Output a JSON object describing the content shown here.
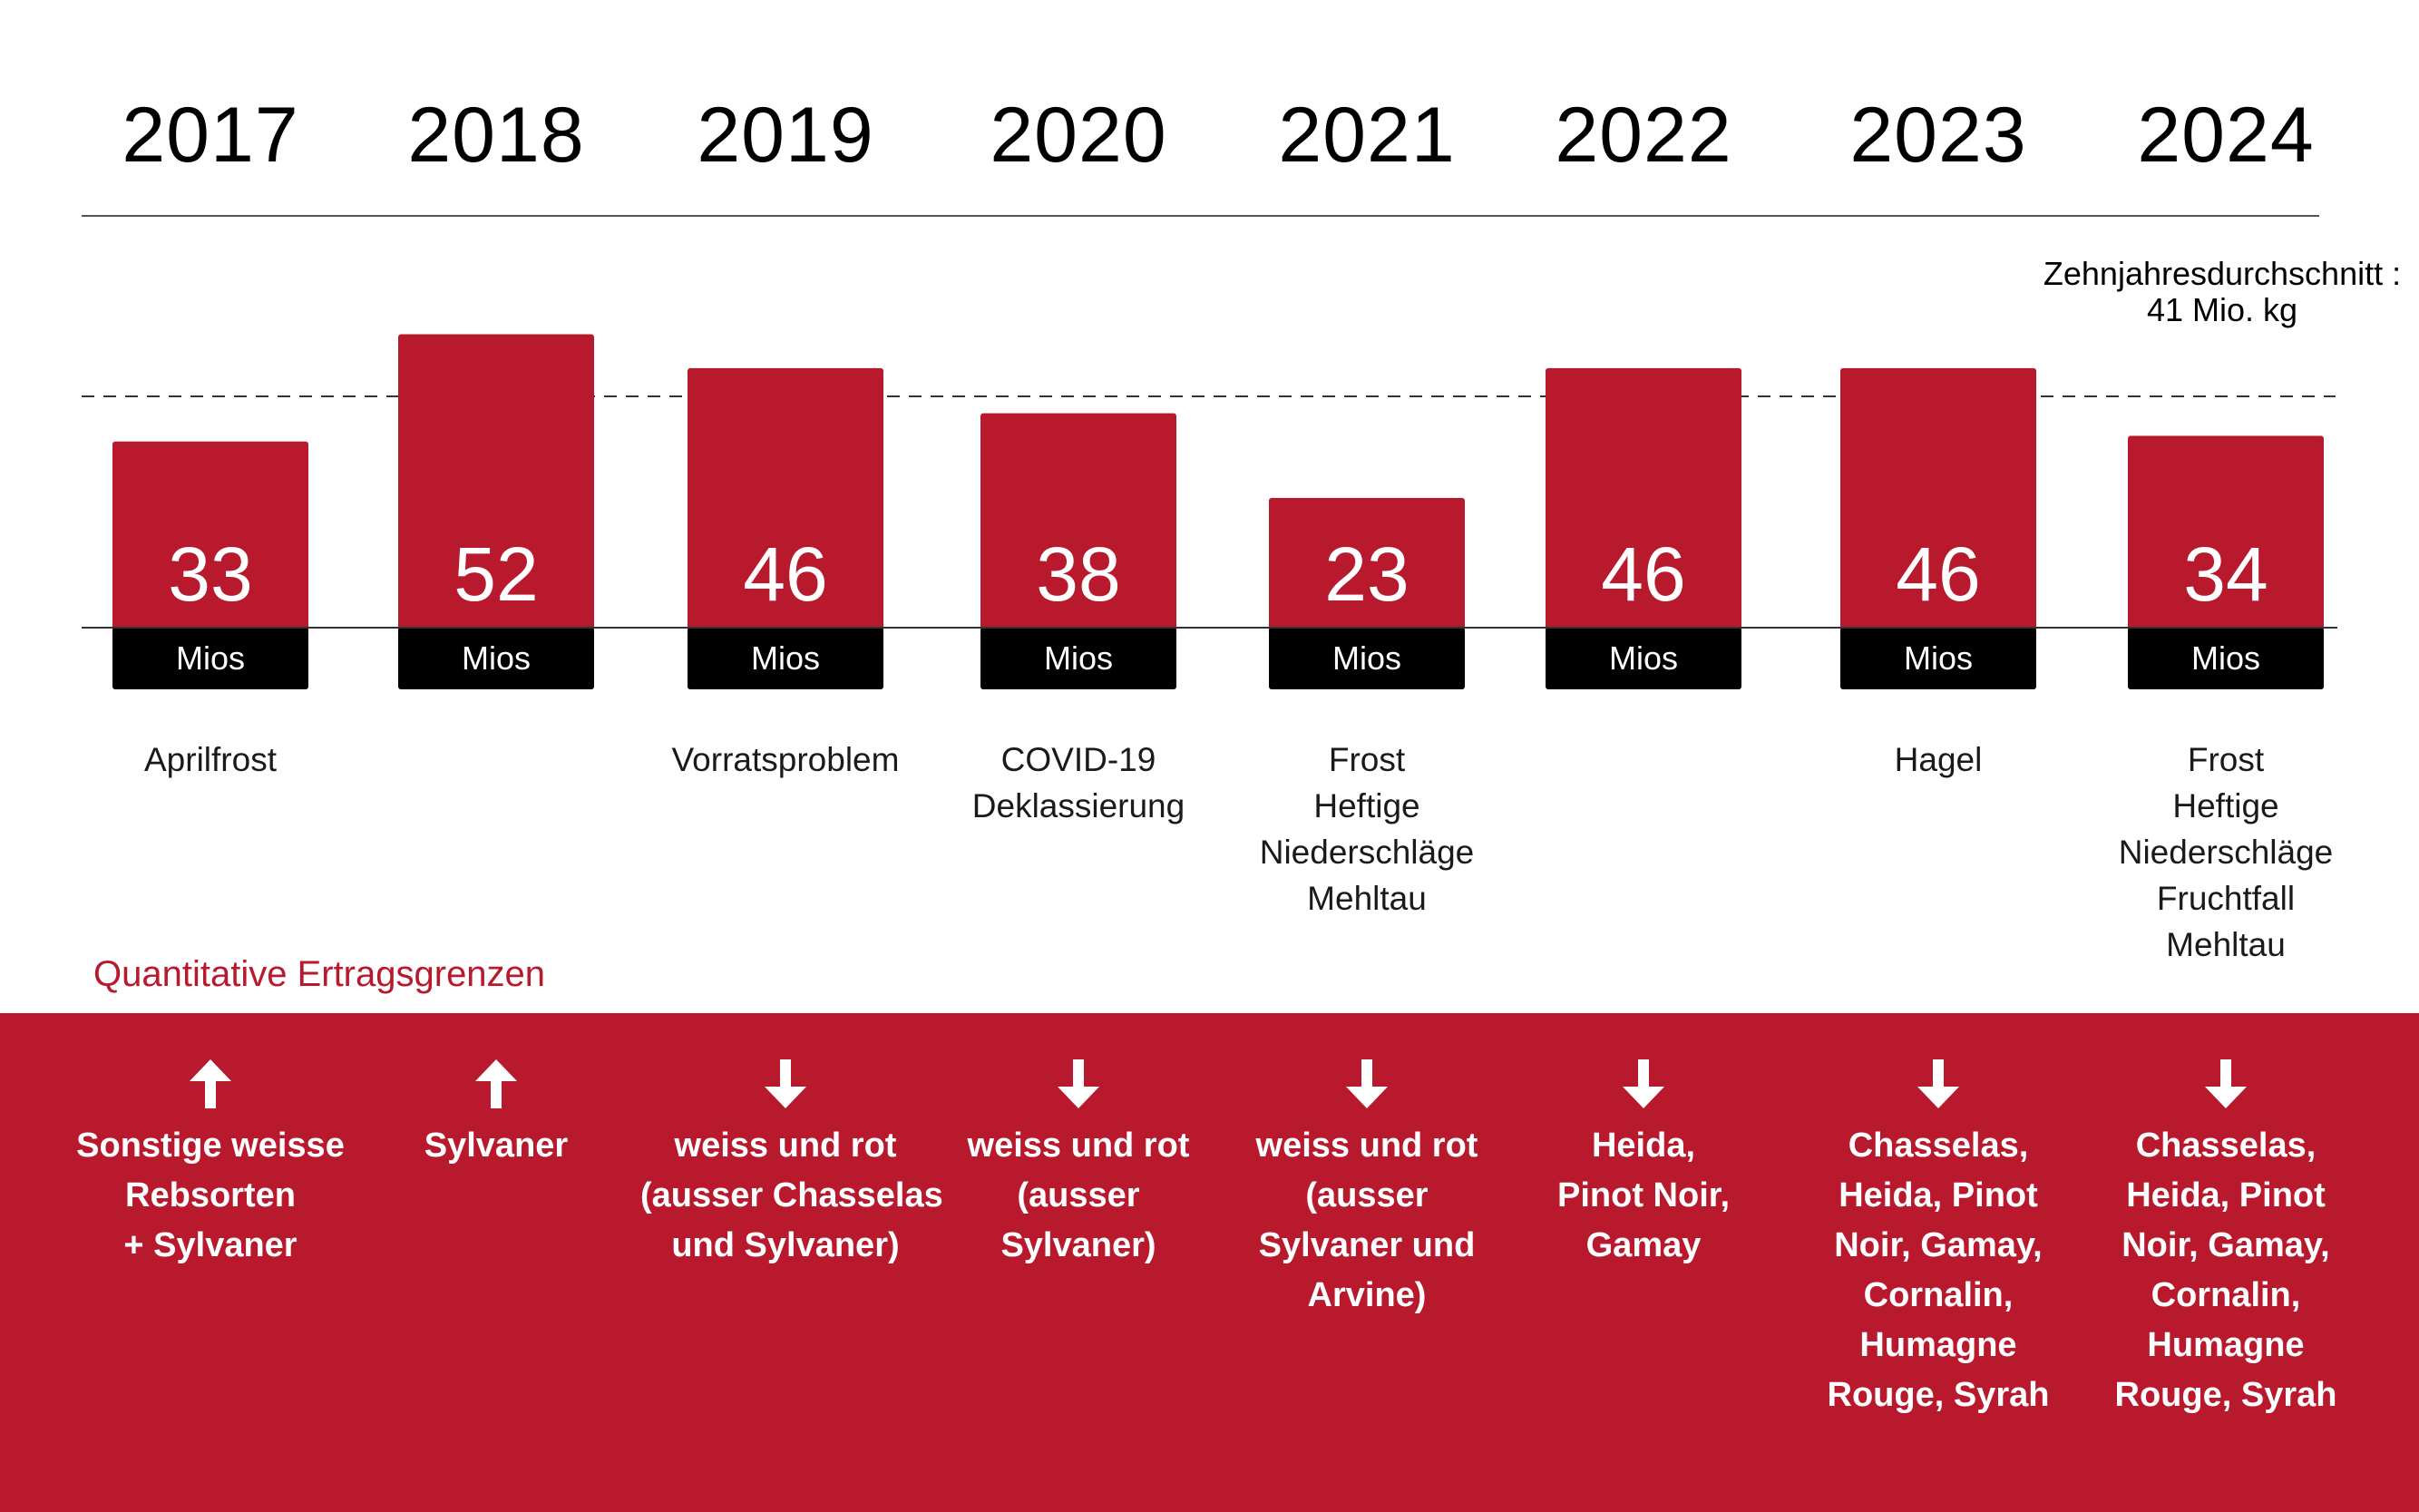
{
  "chart_data": {
    "type": "bar",
    "categories": [
      "2017",
      "2018",
      "2019",
      "2020",
      "2021",
      "2022",
      "2023",
      "2024"
    ],
    "values": [
      33,
      52,
      46,
      38,
      23,
      46,
      46,
      34
    ],
    "unit_label": "Mios",
    "reference_line": {
      "value": 41,
      "label_lines": [
        "Zehnjahresdurchschnitt :",
        "41 Mio. kg"
      ]
    },
    "causes": [
      [
        "Aprilfrost"
      ],
      [],
      [
        "Vorratsproblem"
      ],
      [
        "COVID-19",
        "Deklassierung"
      ],
      [
        "Frost",
        "Heftige",
        "Niederschläge",
        "Mehltau"
      ],
      [],
      [
        "Hagel"
      ],
      [
        "Frost",
        "Heftige",
        "Niederschläge",
        "Fruchtfall",
        "Mehltau"
      ]
    ],
    "colors": {
      "bar": "#b8192d",
      "label_bg": "#000000",
      "band": "#b8192d",
      "text_on_band": "#ffffff"
    }
  },
  "limits": {
    "title": "Quantitative Ertragsgrenzen",
    "items": [
      {
        "direction": "up",
        "lines": [
          "Sonstige weisse",
          "Rebsorten",
          "+   Sylvaner"
        ]
      },
      {
        "direction": "up",
        "lines": [
          "Sylvaner"
        ]
      },
      {
        "direction": "down",
        "lines": [
          "weiss und rot",
          "(ausser Chasselas",
          "und Sylvaner)"
        ]
      },
      {
        "direction": "down",
        "lines": [
          "weiss und rot",
          "(ausser",
          "Sylvaner)"
        ]
      },
      {
        "direction": "down",
        "lines": [
          "weiss und rot",
          "(ausser",
          "Sylvaner und",
          "Arvine)"
        ]
      },
      {
        "direction": "down",
        "lines": [
          "Heida,",
          "Pinot Noir,",
          "Gamay"
        ]
      },
      {
        "direction": "down",
        "lines": [
          "Chasselas,",
          "Heida, Pinot",
          "Noir, Gamay,",
          "Cornalin,",
          "Humagne",
          "Rouge, Syrah"
        ]
      },
      {
        "direction": "down",
        "lines": [
          "Chasselas,",
          "Heida, Pinot",
          "Noir, Gamay,",
          "Cornalin,",
          "Humagne",
          "Rouge, Syrah"
        ]
      }
    ]
  }
}
